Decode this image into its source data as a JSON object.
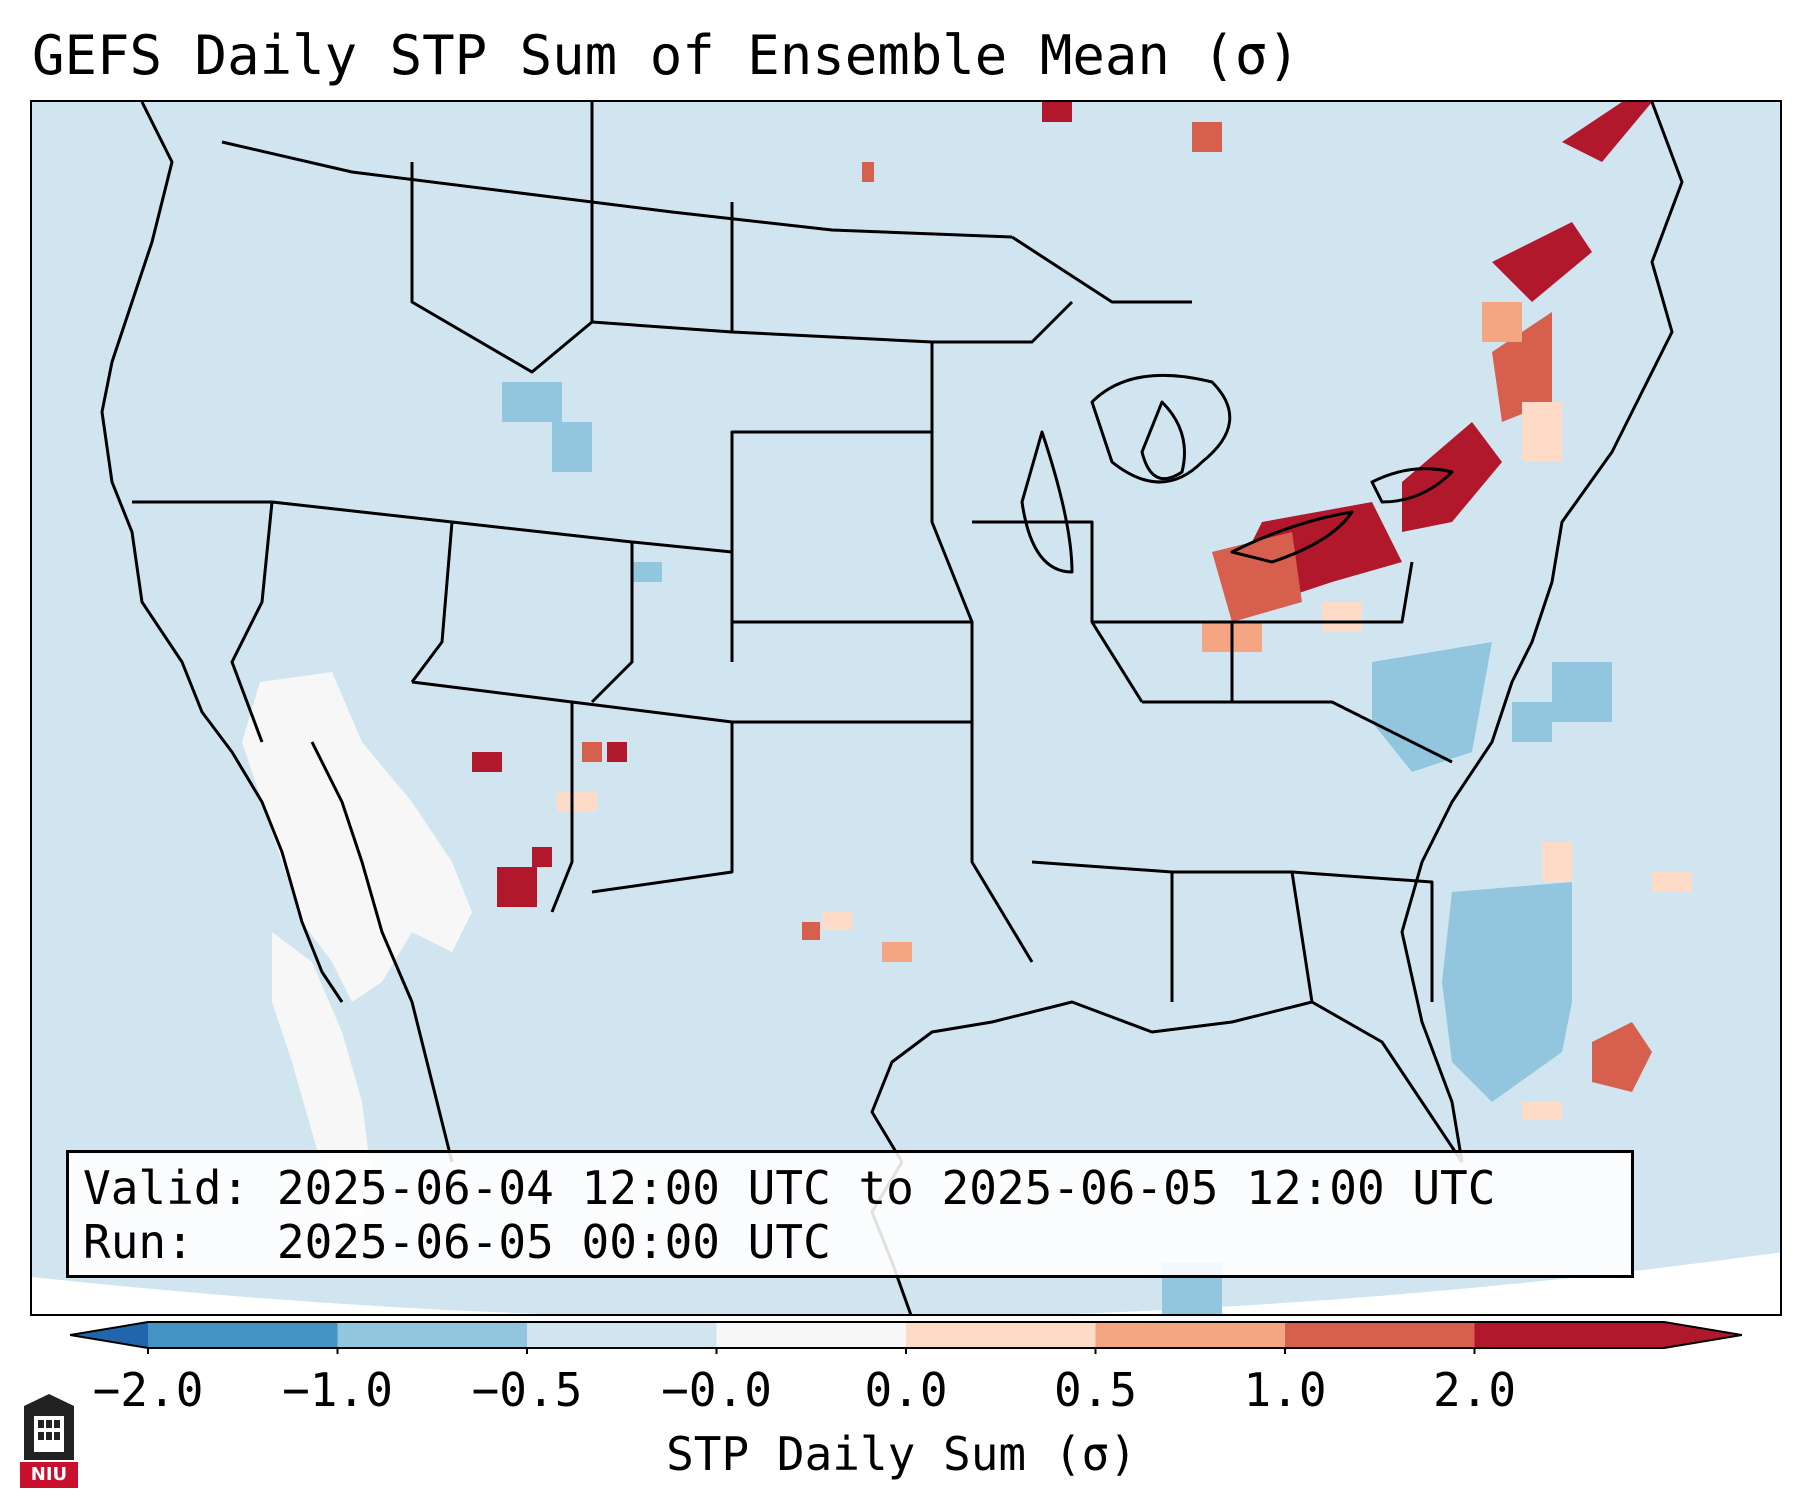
{
  "title": "GEFS Daily STP Sum of Ensemble Mean (σ)",
  "info": {
    "valid_label": "Valid:",
    "valid_value": "2025-06-04 12:00 UTC to 2025-06-05 12:00 UTC",
    "run_label": "Run:",
    "run_value": "2025-06-05 00:00 UTC"
  },
  "colorbar": {
    "label": "STP Daily Sum (σ)",
    "ticks": [
      "−2.0",
      "−1.0",
      "−0.5",
      "−0.0",
      "0.0",
      "0.5",
      "1.0",
      "2.0"
    ],
    "colors": [
      "#4393c3",
      "#92c5de",
      "#d1e5f0",
      "#f7f7f7",
      "#fddbc7",
      "#f4a582",
      "#d6604d",
      "#b2182b"
    ],
    "under_color": "#2166ac",
    "over_color": "#b2182b"
  },
  "map": {
    "ocean_color": "#d1e5f0",
    "region": "Contiguous United States",
    "features": [
      {
        "name": "Ohio Valley / Lake Erie maximum",
        "value_sigma": 2.0
      },
      {
        "name": "Upstate New York / Quebec band",
        "value_sigma": 2.0
      },
      {
        "name": "Southwest desert near-zero region",
        "value_sigma": 0.0
      },
      {
        "name": "Southeast coast negative anomaly",
        "value_sigma": -0.75
      },
      {
        "name": "Bahamas positive anomaly",
        "value_sigma": 1.5
      }
    ]
  },
  "logo": {
    "text": "NIU"
  }
}
